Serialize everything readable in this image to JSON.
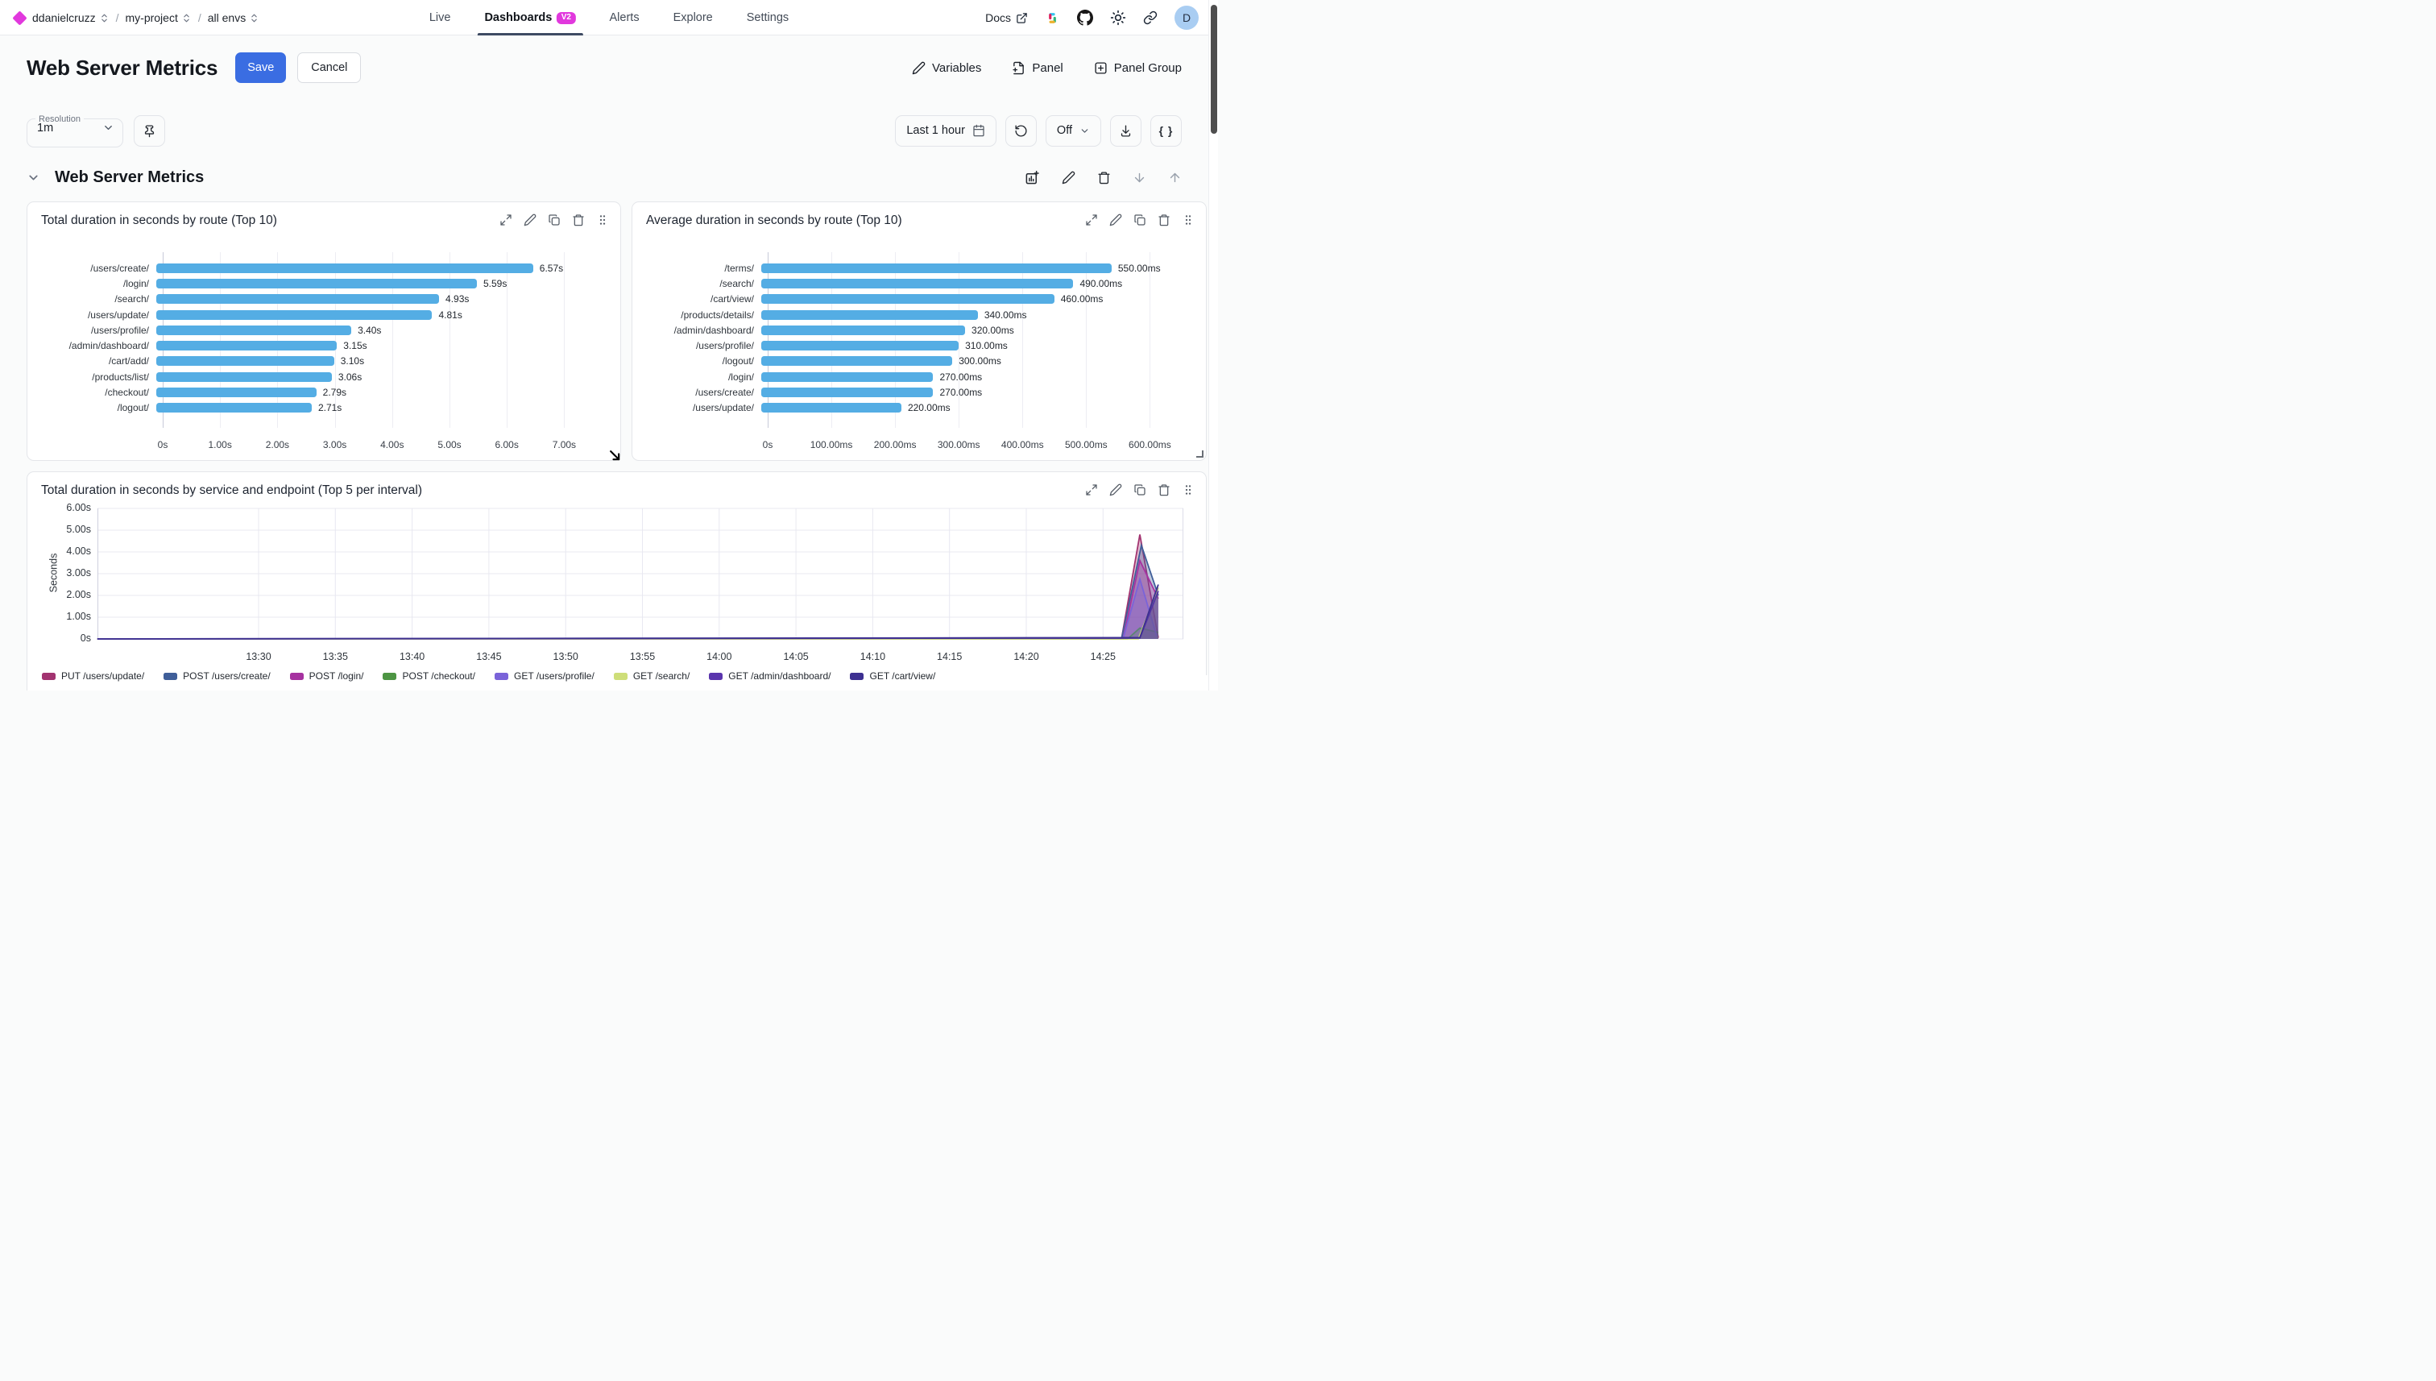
{
  "colors": {
    "brand_magenta": "#e138dd",
    "accent_blue": "#3a6de2",
    "bar_blue": "#54ade4",
    "tab_underline": "#3e4b63",
    "avatar_bg": "#a9cdf2"
  },
  "header": {
    "breadcrumb": [
      "ddanielcruzz",
      "my-project",
      "all envs"
    ],
    "nav": [
      {
        "label": "Live",
        "active": false
      },
      {
        "label": "Dashboards",
        "active": true,
        "badge": "V2"
      },
      {
        "label": "Alerts",
        "active": false
      },
      {
        "label": "Explore",
        "active": false
      },
      {
        "label": "Settings",
        "active": false
      }
    ],
    "docs_label": "Docs",
    "icons": [
      "external-link-icon",
      "slack-icon",
      "github-icon",
      "sun-icon",
      "link-icon"
    ],
    "avatar_letter": "D"
  },
  "toolbar": {
    "title": "Web Server Metrics",
    "save_label": "Save",
    "cancel_label": "Cancel",
    "variables_label": "Variables",
    "panel_label": "Panel",
    "panel_group_label": "Panel Group"
  },
  "controls": {
    "resolution_label": "Resolution",
    "resolution_value": "1m",
    "time_range": "Last 1 hour",
    "refresh_value": "Off",
    "braces_label": "{ }"
  },
  "section": {
    "title": "Web Server Metrics"
  },
  "chart_data": [
    {
      "id": "chart1",
      "type": "bar",
      "orientation": "horizontal",
      "title": "Total duration in seconds by route (Top 10)",
      "categories": [
        "/users/create/",
        "/login/",
        "/search/",
        "/users/update/",
        "/users/profile/",
        "/admin/dashboard/",
        "/cart/add/",
        "/products/list/",
        "/checkout/",
        "/logout/"
      ],
      "values": [
        6.57,
        5.59,
        4.93,
        4.81,
        3.4,
        3.15,
        3.1,
        3.06,
        2.79,
        2.71
      ],
      "value_labels": [
        "6.57s",
        "5.59s",
        "4.93s",
        "4.81s",
        "3.40s",
        "3.15s",
        "3.10s",
        "3.06s",
        "2.79s",
        "2.71s"
      ],
      "tick_values": [
        0,
        1,
        2,
        3,
        4,
        5,
        6,
        7
      ],
      "tick_labels": [
        "0s",
        "1.00s",
        "2.00s",
        "3.00s",
        "4.00s",
        "5.00s",
        "6.00s",
        "7.00s"
      ],
      "xlim": [
        0,
        7.5
      ],
      "bar_color": "#54ade4"
    },
    {
      "id": "chart2",
      "type": "bar",
      "orientation": "horizontal",
      "title": "Average duration in seconds by route (Top 10)",
      "categories": [
        "/terms/",
        "/search/",
        "/cart/view/",
        "/products/details/",
        "/admin/dashboard/",
        "/users/profile/",
        "/logout/",
        "/login/",
        "/users/create/",
        "/users/update/"
      ],
      "values": [
        550,
        490,
        460,
        340,
        320,
        310,
        300,
        270,
        270,
        220
      ],
      "value_labels": [
        "550.00ms",
        "490.00ms",
        "460.00ms",
        "340.00ms",
        "320.00ms",
        "310.00ms",
        "300.00ms",
        "270.00ms",
        "270.00ms",
        "220.00ms"
      ],
      "tick_values": [
        0,
        100,
        200,
        300,
        400,
        500,
        600
      ],
      "tick_labels": [
        "0s",
        "100.00ms",
        "200.00ms",
        "300.00ms",
        "400.00ms",
        "500.00ms",
        "600.00ms"
      ],
      "xlim": [
        0,
        645
      ],
      "bar_color": "#54ade4"
    },
    {
      "id": "chart3",
      "type": "area",
      "title": "Total duration in seconds by service and endpoint (Top 5 per interval)",
      "ylabel": "Seconds",
      "ylim": [
        0,
        6
      ],
      "ytick_labels": [
        "6.00s",
        "5.00s",
        "4.00s",
        "3.00s",
        "2.00s",
        "1.00s",
        "0s"
      ],
      "xtick_labels": [
        "13:30",
        "13:35",
        "13:40",
        "13:45",
        "13:50",
        "13:55",
        "14:00",
        "14:05",
        "14:10",
        "14:15",
        "14:20",
        "14:25"
      ],
      "x_domain_minutes": [
        0.5,
        71.2
      ],
      "xtick_start_minute": 11,
      "minutes_per_tick": 5,
      "series": [
        {
          "name": "PUT /users/update/",
          "color": "#a23370",
          "points": [
            [
              0.5,
              0
            ],
            [
              67.2,
              0
            ],
            [
              68.4,
              4.8
            ],
            [
              69.6,
              0.05
            ]
          ]
        },
        {
          "name": "POST /users/create/",
          "color": "#3f5e99",
          "points": [
            [
              0.5,
              0
            ],
            [
              67.2,
              0
            ],
            [
              68.5,
              4.3
            ],
            [
              69.6,
              2.0
            ]
          ]
        },
        {
          "name": "POST /login/",
          "color": "#a632a0",
          "points": [
            [
              0.5,
              0
            ],
            [
              67.3,
              0
            ],
            [
              68.4,
              3.6
            ],
            [
              69.6,
              1.85
            ]
          ]
        },
        {
          "name": "POST /checkout/",
          "color": "#4d9543",
          "points": [
            [
              0.5,
              0
            ],
            [
              67.6,
              0
            ],
            [
              68.4,
              0.5
            ],
            [
              69.6,
              0.3
            ]
          ]
        },
        {
          "name": "GET /users/profile/",
          "color": "#7a63d9",
          "points": [
            [
              0.5,
              0
            ],
            [
              67.3,
              0
            ],
            [
              68.4,
              2.75
            ],
            [
              69.5,
              0.12
            ]
          ]
        },
        {
          "name": "GET /search/",
          "color": "#cede79",
          "points": [
            [
              0.5,
              0
            ],
            [
              68.3,
              0
            ],
            [
              69.6,
              2.35
            ]
          ]
        },
        {
          "name": "GET /admin/dashboard/",
          "color": "#5a35ad",
          "points": [
            [
              0.5,
              0
            ],
            [
              68.4,
              0.04
            ],
            [
              69.6,
              2.2
            ]
          ]
        },
        {
          "name": "GET /cart/view/",
          "color": "#3d3091",
          "points": [
            [
              0.5,
              0
            ],
            [
              68.4,
              0.06
            ],
            [
              69.6,
              2.5
            ]
          ]
        }
      ],
      "legend_position": "bottom"
    }
  ]
}
